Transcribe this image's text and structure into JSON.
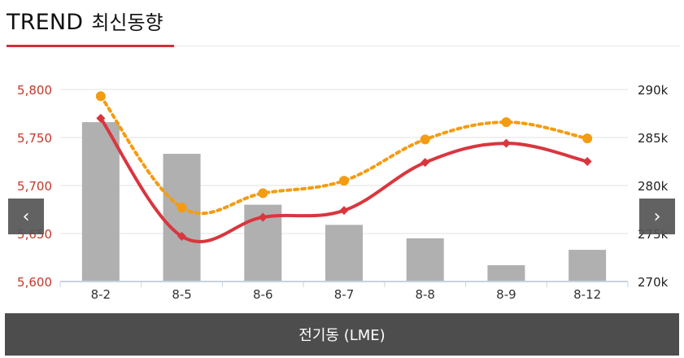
{
  "header": {
    "title_en": "TREND",
    "title_ko": "최신동향"
  },
  "nav": {
    "prev_glyph": "‹",
    "next_glyph": "›"
  },
  "footer": {
    "label": "전기동 (LME)"
  },
  "colors": {
    "accent_red": "#d9363e",
    "dotted_orange": "#f39c12",
    "bar_gray": "#b0b0b0",
    "left_axis_text": "#c0392b",
    "right_axis_text": "#222222"
  },
  "chart_data": {
    "type": "bar",
    "categories": [
      "8-2",
      "8-5",
      "8-6",
      "8-7",
      "8-8",
      "8-9",
      "8-12"
    ],
    "left_axis": {
      "ylim": [
        5600,
        5800
      ],
      "ticks": [
        "5,600",
        "5,650",
        "5,700",
        "5,750",
        "5,800"
      ],
      "tick_values": [
        5600,
        5650,
        5700,
        5750,
        5800
      ]
    },
    "right_axis": {
      "ylim": [
        270000,
        290000
      ],
      "ticks": [
        "270k",
        "275k",
        "280k",
        "285k",
        "290k"
      ],
      "tick_values": [
        270000,
        275000,
        280000,
        285000,
        290000
      ]
    },
    "series": [
      {
        "kind": "bar",
        "axis": "left",
        "values": [
          5766,
          5733,
          5680,
          5659,
          5645,
          5617,
          5633
        ]
      },
      {
        "kind": "line",
        "axis": "left",
        "values": [
          5770,
          5647,
          5667,
          5674,
          5724,
          5744,
          5725
        ]
      },
      {
        "kind": "dotted-line",
        "axis": "right",
        "values": [
          289300,
          277700,
          279200,
          280500,
          284800,
          286600,
          284900
        ]
      }
    ],
    "grid": true
  }
}
